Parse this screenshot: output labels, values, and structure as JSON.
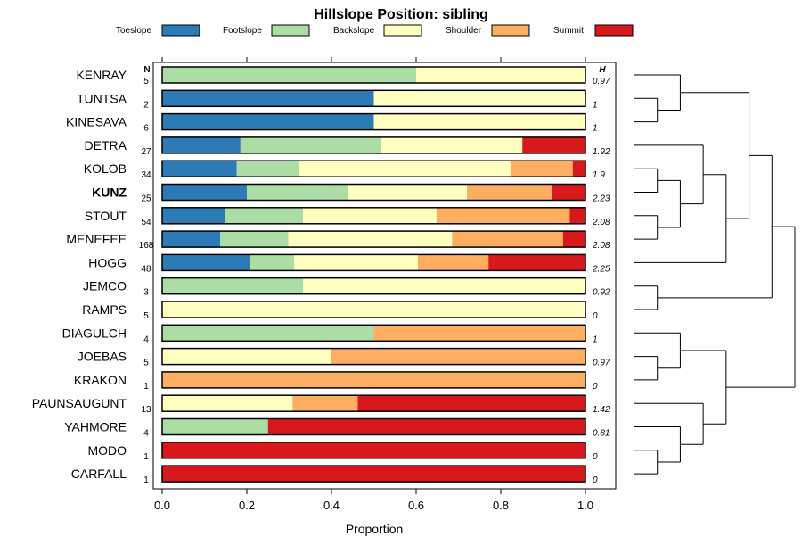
{
  "chart_data": {
    "type": "bar",
    "stacked": true,
    "orientation": "horizontal",
    "title": "Hillslope Position: sibling",
    "xlabel": "Proportion",
    "xlim": [
      0,
      1
    ],
    "x_ticks": [
      "0.0",
      "0.2",
      "0.4",
      "0.6",
      "0.8",
      "1.0"
    ],
    "n_header": "N",
    "h_header": "H",
    "highlight": "KUNZ",
    "legend": {
      "position": "top",
      "entries": [
        {
          "name": "Toeslope",
          "color": "#2c7bb6"
        },
        {
          "name": "Footslope",
          "color": "#abdda4"
        },
        {
          "name": "Backslope",
          "color": "#ffffbf"
        },
        {
          "name": "Shoulder",
          "color": "#fdae61"
        },
        {
          "name": "Summit",
          "color": "#d7191c"
        }
      ]
    },
    "rows": [
      {
        "label": "KENRAY",
        "n": "5",
        "h": "0.97",
        "values": [
          0,
          0.6,
          0.4,
          0,
          0
        ]
      },
      {
        "label": "TUNTSA",
        "n": "2",
        "h": "1",
        "values": [
          0.5,
          0,
          0.5,
          0,
          0
        ]
      },
      {
        "label": "KINESAVA",
        "n": "6",
        "h": "1",
        "values": [
          0.5,
          0,
          0.5,
          0,
          0
        ]
      },
      {
        "label": "DETRA",
        "n": "27",
        "h": "1.92",
        "values": [
          0.185,
          0.333,
          0.333,
          0,
          0.149
        ]
      },
      {
        "label": "KOLOB",
        "n": "34",
        "h": "1.9",
        "values": [
          0.176,
          0.147,
          0.5,
          0.147,
          0.03
        ]
      },
      {
        "label": "KUNZ",
        "n": "25",
        "h": "2.23",
        "values": [
          0.2,
          0.24,
          0.28,
          0.2,
          0.08
        ]
      },
      {
        "label": "STOUT",
        "n": "54",
        "h": "2.08",
        "values": [
          0.148,
          0.185,
          0.315,
          0.315,
          0.037
        ]
      },
      {
        "label": "MENEFEE",
        "n": "168",
        "h": "2.08",
        "values": [
          0.137,
          0.161,
          0.387,
          0.262,
          0.053
        ]
      },
      {
        "label": "HOGG",
        "n": "48",
        "h": "2.25",
        "values": [
          0.208,
          0.104,
          0.292,
          0.167,
          0.229
        ]
      },
      {
        "label": "JEMCO",
        "n": "3",
        "h": "0.92",
        "values": [
          0,
          0.333,
          0.667,
          0,
          0
        ]
      },
      {
        "label": "RAMPS",
        "n": "5",
        "h": "0",
        "values": [
          0,
          0,
          1,
          0,
          0
        ]
      },
      {
        "label": "DIAGULCH",
        "n": "4",
        "h": "1",
        "values": [
          0,
          0.5,
          0,
          0.5,
          0
        ]
      },
      {
        "label": "JOEBAS",
        "n": "5",
        "h": "0.97",
        "values": [
          0,
          0,
          0.4,
          0.6,
          0
        ]
      },
      {
        "label": "KRAKON",
        "n": "1",
        "h": "0",
        "values": [
          0,
          0,
          0,
          1,
          0
        ]
      },
      {
        "label": "PAUNSAUGUNT",
        "n": "13",
        "h": "1.42",
        "values": [
          0,
          0,
          0.308,
          0.154,
          0.538
        ]
      },
      {
        "label": "YAHMORE",
        "n": "4",
        "h": "0.81",
        "values": [
          0,
          0.25,
          0,
          0,
          0.75
        ]
      },
      {
        "label": "MODO",
        "n": "1",
        "h": "0",
        "values": [
          0,
          0,
          0,
          0,
          1
        ]
      },
      {
        "label": "CARFALL",
        "n": "1",
        "h": "0",
        "values": [
          0,
          0,
          0,
          0,
          1
        ]
      }
    ],
    "dendrogram": {
      "description": "Hierarchical clustering of rows",
      "tree": [
        [
          [
            [
              "KENRAY",
              [
                "TUNTSA",
                "KINESAVA"
              ]
            ],
            [
              [
                "DETRA",
                [
                  [
                    "KOLOB",
                    "KUNZ"
                  ],
                  [
                    "STOUT",
                    "MENEFEE"
                  ]
                ]
              ],
              "HOGG"
            ]
          ],
          [
            "JEMCO",
            "RAMPS"
          ]
        ],
        [
          [
            [
              "DIAGULCH",
              [
                "JOEBAS",
                "KRAKON"
              ]
            ]
          ],
          [
            "PAUNSAUGUNT",
            [
              "YAHMORE",
              [
                "MODO",
                "CARFALL"
              ]
            ]
          ]
        ]
      ]
    }
  }
}
